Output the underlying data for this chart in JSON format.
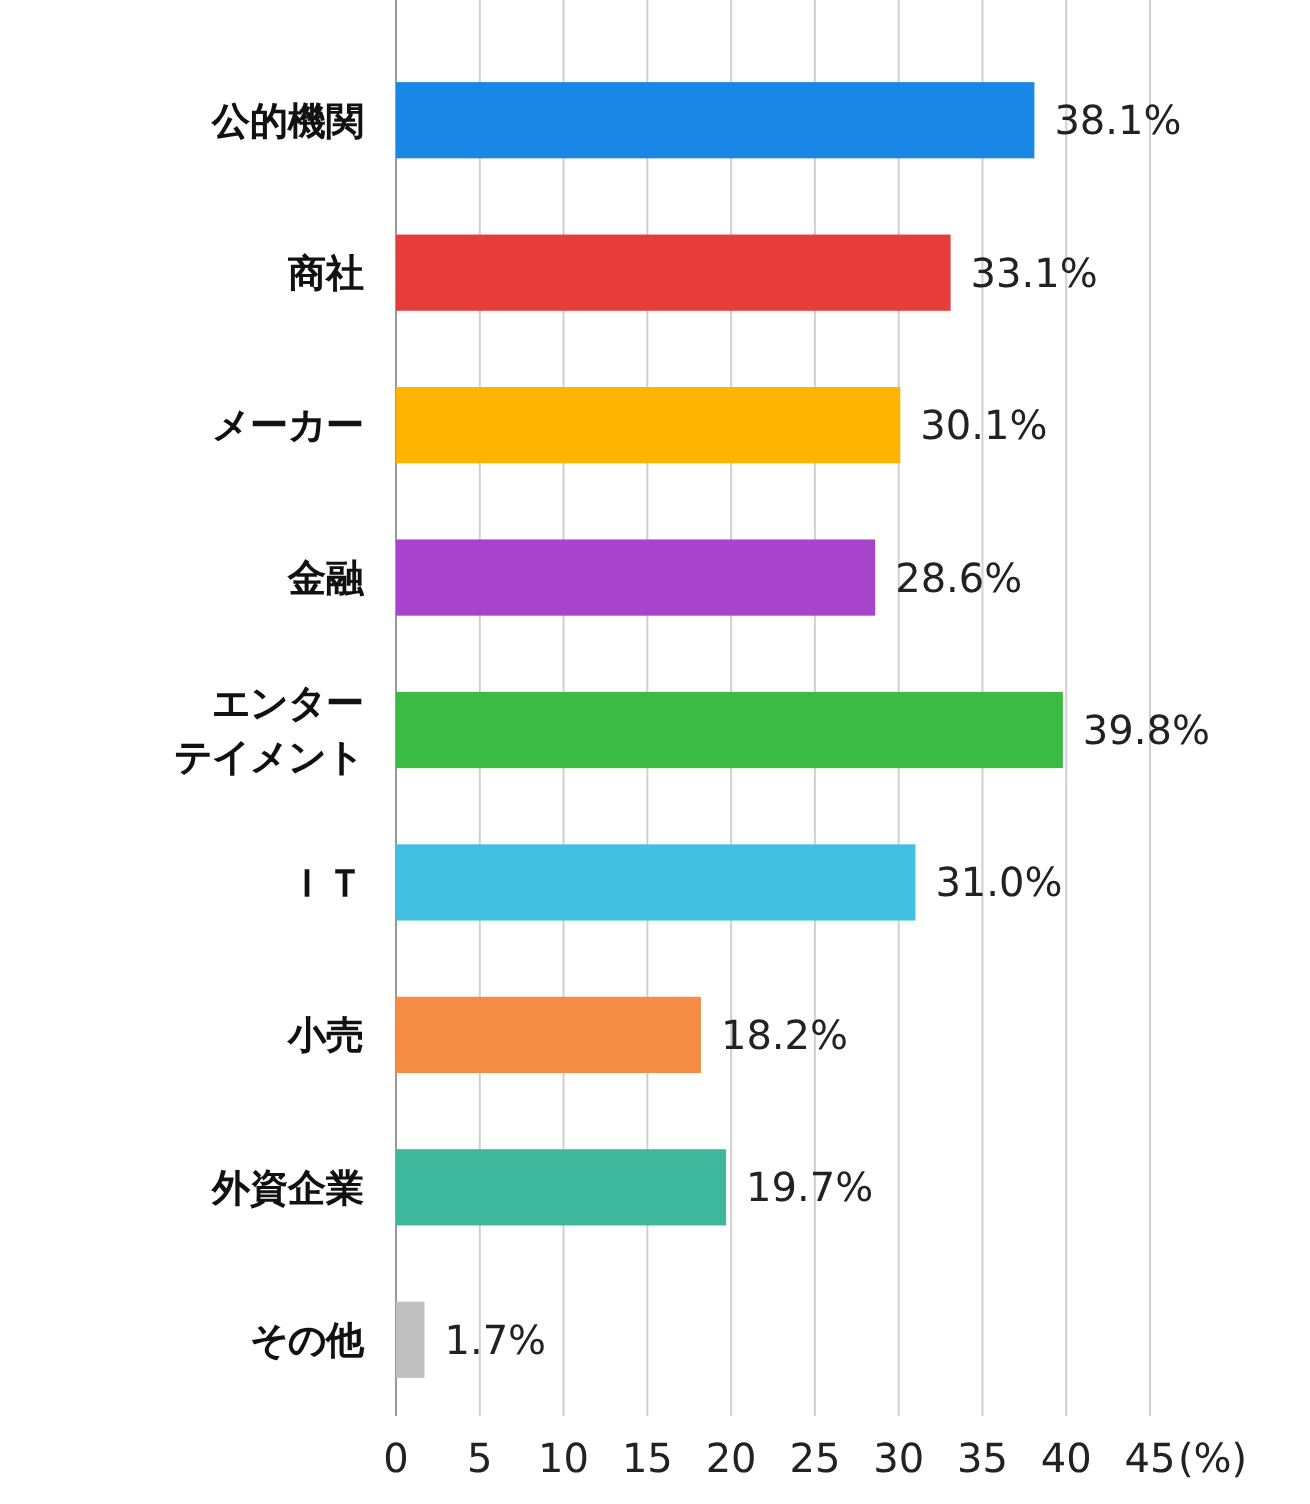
{
  "chart_data": {
    "type": "bar",
    "orientation": "horizontal",
    "categories": [
      "公的機関",
      "商社",
      "メーカー",
      "金融",
      "エンターテイメント",
      "ＩＴ",
      "小売",
      "外資企業",
      "その他"
    ],
    "values": [
      38.1,
      33.1,
      30.1,
      28.6,
      39.8,
      31.0,
      18.2,
      19.7,
      1.7
    ],
    "colors": [
      "#1a87e6",
      "#e63c3c",
      "#ffb400",
      "#a844cc",
      "#3cbb44",
      "#42c0e0",
      "#f58c46",
      "#3db89c",
      "#c0c0c0"
    ],
    "value_labels": [
      "38.1%",
      "33.1%",
      "30.1%",
      "28.6%",
      "39.8%",
      "31.0%",
      "18.2%",
      "19.7%",
      "1.7%"
    ],
    "xlim": [
      0,
      45
    ],
    "xticks": [
      0,
      5,
      10,
      15,
      20,
      25,
      30,
      35,
      40,
      45
    ],
    "xlabel": "(%)",
    "grid": "x"
  }
}
